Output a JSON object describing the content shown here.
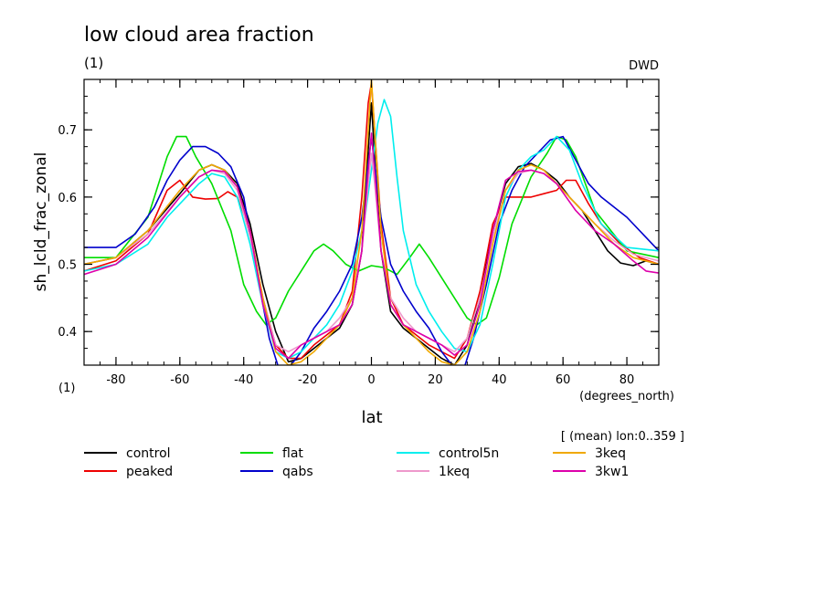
{
  "colors": {
    "control": "#000000",
    "flat": "#00dd00",
    "control5n": "#00eeee",
    "3keq": "#f0a800",
    "peaked": "#ee0000",
    "qabs": "#0000cc",
    "1keq": "#ee99cc",
    "3kw1": "#dd00aa"
  },
  "chart_data": {
    "type": "line",
    "title": "low cloud area fraction",
    "subtitle": "(1)",
    "source": "DWD",
    "xlabel": "lat",
    "xunits": "(degrees_north)",
    "ylabel": "sh_lcld_frac_zonal",
    "yunits": "(1)",
    "annotation": "[ (mean) lon:0..359 ]",
    "xlim": [
      -90,
      90
    ],
    "ylim": [
      0.35,
      0.775
    ],
    "xticks": [
      -80,
      -60,
      -40,
      -20,
      0,
      20,
      40,
      60,
      80
    ],
    "xtick_labels": [
      "-80",
      "-60",
      "-40",
      "-20",
      "0",
      "20",
      "40",
      "60",
      "80"
    ],
    "yticks": [
      0.4,
      0.5,
      0.6,
      0.7
    ],
    "ytick_labels": [
      "0.4",
      "0.5",
      "0.6",
      "0.7"
    ],
    "grid": false,
    "legend_position": "bottom",
    "series": [
      {
        "name": "control",
        "color": "control",
        "x": [
          -90,
          -80,
          -70,
          -60,
          -54,
          -50,
          -46,
          -42,
          -38,
          -34,
          -30,
          -26,
          -22,
          -18,
          -14,
          -10,
          -6,
          -3,
          -1,
          0,
          1,
          3,
          6,
          10,
          14,
          18,
          22,
          26,
          30,
          34,
          38,
          42,
          46,
          50,
          54,
          58,
          62,
          66,
          70,
          74,
          78,
          82,
          86,
          90
        ],
        "y": [
          0.5,
          0.51,
          0.55,
          0.605,
          0.64,
          0.648,
          0.64,
          0.62,
          0.56,
          0.47,
          0.4,
          0.355,
          0.36,
          0.375,
          0.39,
          0.405,
          0.44,
          0.52,
          0.67,
          0.74,
          0.66,
          0.52,
          0.43,
          0.405,
          0.39,
          0.375,
          0.36,
          0.35,
          0.38,
          0.45,
          0.55,
          0.62,
          0.645,
          0.65,
          0.64,
          0.625,
          0.6,
          0.58,
          0.55,
          0.52,
          0.502,
          0.498,
          0.505,
          0.5
        ]
      },
      {
        "name": "peaked",
        "color": "peaked",
        "x": [
          -90,
          -80,
          -70,
          -64,
          -60,
          -56,
          -52,
          -48,
          -45,
          -42,
          -38,
          -34,
          -30,
          -26,
          -22,
          -18,
          -14,
          -10,
          -6,
          -3,
          -1,
          0,
          1,
          3,
          6,
          10,
          14,
          18,
          22,
          26,
          30,
          34,
          38,
          42,
          46,
          50,
          54,
          58,
          61,
          64,
          68,
          72,
          78,
          84,
          90
        ],
        "y": [
          0.49,
          0.505,
          0.545,
          0.61,
          0.625,
          0.6,
          0.597,
          0.598,
          0.608,
          0.6,
          0.55,
          0.45,
          0.38,
          0.36,
          0.36,
          0.38,
          0.395,
          0.41,
          0.46,
          0.6,
          0.74,
          0.77,
          0.7,
          0.56,
          0.45,
          0.41,
          0.395,
          0.38,
          0.37,
          0.36,
          0.39,
          0.46,
          0.56,
          0.6,
          0.6,
          0.6,
          0.605,
          0.61,
          0.625,
          0.625,
          0.59,
          0.56,
          0.53,
          0.51,
          0.5
        ]
      },
      {
        "name": "flat",
        "color": "flat",
        "x": [
          -90,
          -80,
          -70,
          -64,
          -61,
          -58,
          -55,
          -50,
          -44,
          -40,
          -36,
          -33,
          -30,
          -26,
          -22,
          -18,
          -15,
          -12,
          -8,
          -4,
          0,
          4,
          8,
          12,
          15,
          18,
          22,
          26,
          30,
          33,
          36,
          40,
          44,
          50,
          55,
          58,
          61,
          64,
          70,
          80,
          90
        ],
        "y": [
          0.51,
          0.51,
          0.57,
          0.66,
          0.69,
          0.69,
          0.66,
          0.62,
          0.55,
          0.47,
          0.43,
          0.41,
          0.42,
          0.46,
          0.49,
          0.52,
          0.53,
          0.52,
          0.5,
          0.49,
          0.498,
          0.495,
          0.485,
          0.51,
          0.53,
          0.51,
          0.48,
          0.45,
          0.42,
          0.41,
          0.42,
          0.48,
          0.56,
          0.63,
          0.665,
          0.69,
          0.685,
          0.66,
          0.58,
          0.52,
          0.51
        ]
      },
      {
        "name": "qabs",
        "color": "qabs",
        "x": [
          -90,
          -80,
          -74,
          -68,
          -64,
          -60,
          -56,
          -52,
          -48,
          -44,
          -40,
          -36,
          -32,
          -29,
          -26,
          -22,
          -18,
          -14,
          -10,
          -6,
          -3,
          -1,
          0,
          1,
          3,
          6,
          10,
          14,
          18,
          22,
          26,
          29,
          32,
          36,
          40,
          44,
          48,
          52,
          56,
          60,
          64,
          68,
          72,
          80,
          90
        ],
        "y": [
          0.525,
          0.525,
          0.545,
          0.585,
          0.625,
          0.655,
          0.675,
          0.675,
          0.665,
          0.645,
          0.6,
          0.49,
          0.39,
          0.345,
          0.345,
          0.37,
          0.405,
          0.43,
          0.46,
          0.5,
          0.57,
          0.65,
          0.69,
          0.65,
          0.57,
          0.5,
          0.46,
          0.43,
          0.405,
          0.37,
          0.345,
          0.345,
          0.39,
          0.47,
          0.56,
          0.61,
          0.645,
          0.665,
          0.685,
          0.69,
          0.655,
          0.62,
          0.6,
          0.57,
          0.52
        ]
      },
      {
        "name": "control5n",
        "color": "control5n",
        "x": [
          -90,
          -80,
          -70,
          -64,
          -58,
          -54,
          -50,
          -46,
          -42,
          -38,
          -34,
          -30,
          -26,
          -22,
          -18,
          -14,
          -10,
          -6,
          -2,
          0,
          2,
          4,
          6,
          8,
          10,
          14,
          18,
          22,
          26,
          30,
          34,
          38,
          42,
          46,
          50,
          54,
          58,
          62,
          66,
          72,
          80,
          90
        ],
        "y": [
          0.49,
          0.5,
          0.53,
          0.57,
          0.6,
          0.62,
          0.635,
          0.63,
          0.6,
          0.53,
          0.44,
          0.37,
          0.36,
          0.37,
          0.39,
          0.41,
          0.44,
          0.49,
          0.57,
          0.64,
          0.71,
          0.745,
          0.72,
          0.63,
          0.55,
          0.47,
          0.43,
          0.4,
          0.375,
          0.37,
          0.41,
          0.5,
          0.6,
          0.64,
          0.66,
          0.67,
          0.69,
          0.67,
          0.62,
          0.56,
          0.525,
          0.52
        ]
      },
      {
        "name": "1keq",
        "color": "1keq",
        "x": [
          -90,
          -80,
          -70,
          -60,
          -54,
          -50,
          -46,
          -42,
          -38,
          -34,
          -30,
          -26,
          -22,
          -18,
          -14,
          -10,
          -6,
          -3,
          -1,
          0,
          1,
          3,
          6,
          10,
          14,
          18,
          22,
          26,
          30,
          34,
          38,
          42,
          46,
          50,
          54,
          58,
          64,
          70,
          76,
          82,
          90
        ],
        "y": [
          0.5,
          0.51,
          0.545,
          0.6,
          0.63,
          0.64,
          0.635,
          0.61,
          0.54,
          0.45,
          0.38,
          0.37,
          0.38,
          0.39,
          0.4,
          0.42,
          0.45,
          0.52,
          0.62,
          0.665,
          0.62,
          0.52,
          0.45,
          0.42,
          0.4,
          0.39,
          0.38,
          0.37,
          0.39,
          0.45,
          0.54,
          0.61,
          0.635,
          0.64,
          0.635,
          0.62,
          0.59,
          0.56,
          0.535,
          0.515,
          0.505
        ]
      },
      {
        "name": "3keq",
        "color": "3keq",
        "x": [
          -90,
          -80,
          -70,
          -60,
          -54,
          -50,
          -46,
          -42,
          -38,
          -34,
          -30,
          -26,
          -22,
          -18,
          -14,
          -10,
          -6,
          -3,
          -1,
          0,
          1,
          3,
          6,
          10,
          14,
          18,
          22,
          26,
          30,
          34,
          38,
          42,
          46,
          50,
          54,
          58,
          64,
          70,
          76,
          82,
          90
        ],
        "y": [
          0.5,
          0.51,
          0.55,
          0.61,
          0.64,
          0.648,
          0.64,
          0.615,
          0.55,
          0.45,
          0.37,
          0.35,
          0.355,
          0.37,
          0.39,
          0.41,
          0.45,
          0.55,
          0.7,
          0.775,
          0.7,
          0.55,
          0.44,
          0.41,
          0.39,
          0.37,
          0.355,
          0.35,
          0.37,
          0.43,
          0.53,
          0.61,
          0.64,
          0.648,
          0.64,
          0.62,
          0.59,
          0.56,
          0.53,
          0.51,
          0.5
        ]
      },
      {
        "name": "3kw1",
        "color": "3kw1",
        "x": [
          -90,
          -80,
          -70,
          -60,
          -54,
          -50,
          -46,
          -42,
          -38,
          -34,
          -30,
          -26,
          -22,
          -18,
          -14,
          -10,
          -6,
          -3,
          -1,
          0,
          1,
          3,
          6,
          10,
          14,
          18,
          22,
          26,
          30,
          34,
          38,
          42,
          46,
          50,
          54,
          58,
          64,
          70,
          76,
          82,
          86,
          90
        ],
        "y": [
          0.485,
          0.5,
          0.54,
          0.6,
          0.63,
          0.64,
          0.638,
          0.615,
          0.55,
          0.44,
          0.375,
          0.36,
          0.38,
          0.39,
          0.4,
          0.41,
          0.44,
          0.52,
          0.64,
          0.695,
          0.64,
          0.52,
          0.44,
          0.41,
          0.4,
          0.39,
          0.38,
          0.365,
          0.38,
          0.44,
          0.55,
          0.625,
          0.638,
          0.64,
          0.635,
          0.62,
          0.58,
          0.55,
          0.53,
          0.505,
          0.49,
          0.487
        ]
      }
    ]
  },
  "legend": [
    {
      "label": "control",
      "color": "control"
    },
    {
      "label": "flat",
      "color": "flat"
    },
    {
      "label": "control5n",
      "color": "control5n"
    },
    {
      "label": "3keq",
      "color": "3keq"
    },
    {
      "label": "peaked",
      "color": "peaked"
    },
    {
      "label": "qabs",
      "color": "qabs"
    },
    {
      "label": "1keq",
      "color": "1keq"
    },
    {
      "label": "3kw1",
      "color": "3kw1"
    }
  ]
}
